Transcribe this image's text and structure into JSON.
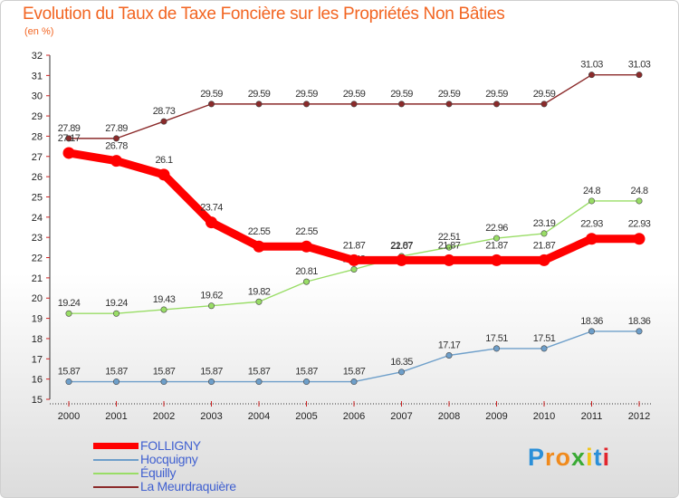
{
  "header": {
    "title": "Evolution du Taux de Taxe Foncière sur les Propriétés Non Bâties",
    "subtitle": "(en %)"
  },
  "chart_data": {
    "type": "line",
    "title": "Evolution du Taux de Taxe Foncière sur les Propriétés Non Bâties",
    "ylabel": "(en %)",
    "xlabel": "",
    "ylim": [
      15,
      32
    ],
    "yticks": [
      15,
      16,
      17,
      18,
      19,
      20,
      21,
      22,
      23,
      24,
      25,
      26,
      27,
      28,
      29,
      30,
      31,
      32
    ],
    "x": [
      "2000",
      "2001",
      "2002",
      "2003",
      "2004",
      "2005",
      "2006",
      "2007",
      "2008",
      "2009",
      "2010",
      "2011",
      "2012"
    ],
    "grid": false,
    "legend_position": "bottom-left",
    "series": [
      {
        "name": "FOLLIGNY",
        "color": "#ff0000",
        "values": [
          27.17,
          26.78,
          26.1,
          23.74,
          22.55,
          22.55,
          21.87,
          21.87,
          21.87,
          21.87,
          21.87,
          22.93,
          22.93
        ],
        "labels": [
          "27.17",
          "26.78",
          "26.1",
          "23.74",
          "22.55",
          "22.55",
          "21.87",
          "21.87",
          "21.87",
          "21.87",
          "21.87",
          "22.93",
          "22.93"
        ]
      },
      {
        "name": "Hocquigny",
        "color": "#6e9fca",
        "values": [
          15.87,
          15.87,
          15.87,
          15.87,
          15.87,
          15.87,
          15.87,
          16.35,
          17.17,
          17.51,
          17.51,
          18.36,
          18.36
        ],
        "labels": [
          "15.87",
          "15.87",
          "15.87",
          "15.87",
          "15.87",
          "15.87",
          "15.87",
          "16.35",
          "17.17",
          "17.51",
          "17.51",
          "18.36",
          "18.36"
        ]
      },
      {
        "name": "Équilly",
        "color": "#99dd66",
        "values": [
          19.24,
          19.24,
          19.43,
          19.62,
          19.82,
          20.81,
          21.42,
          22.07,
          22.51,
          22.96,
          23.19,
          24.8,
          24.8
        ],
        "labels": [
          "19.24",
          "19.24",
          "19.43",
          "19.62",
          "19.82",
          "20.81",
          "21.42",
          "22.07",
          "22.51",
          "22.96",
          "23.19",
          "24.8",
          "24.8"
        ]
      },
      {
        "name": "La Meurdraquière",
        "color": "#8b2a2a",
        "values": [
          27.89,
          27.89,
          28.73,
          29.59,
          29.59,
          29.59,
          29.59,
          29.59,
          29.59,
          29.59,
          29.59,
          31.03,
          31.03
        ],
        "labels": [
          "27.89",
          "27.89",
          "28.73",
          "29.59",
          "29.59",
          "29.59",
          "29.59",
          "29.59",
          "29.59",
          "29.59",
          "29.59",
          "31.03",
          "31.03"
        ]
      }
    ]
  },
  "legend": {
    "items": [
      {
        "label": "FOLLIGNY",
        "color": "#ff0000"
      },
      {
        "label": "Hocquigny",
        "color": "#6e9fca"
      },
      {
        "label": "Équilly",
        "color": "#99dd66"
      },
      {
        "label": "La Meurdraquière",
        "color": "#8b2a2a"
      }
    ]
  },
  "logo": {
    "letters": [
      "P",
      "r",
      "o",
      "x",
      "i",
      "t",
      "i"
    ],
    "colors": [
      "#2b8fd8",
      "#f08a1c",
      "#f08a1c",
      "#3aaa35",
      "#f0c419",
      "#2b8fd8",
      "#e2262d"
    ]
  }
}
